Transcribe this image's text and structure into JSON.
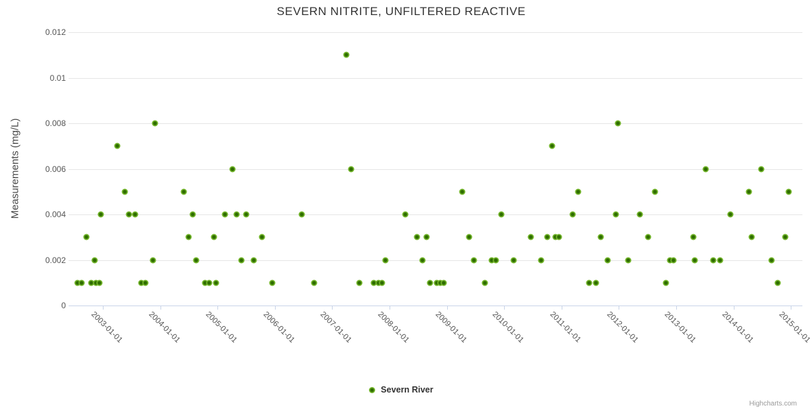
{
  "header": {
    "title": "SEVERN NITRITE, UNFILTERED REACTIVE"
  },
  "legend": {
    "label": "Severn River",
    "position": "bottom-center"
  },
  "credit": {
    "label": "Highcharts.com"
  },
  "colors": {
    "marker_outer": "#74b62b",
    "marker_core": "#2e6c00",
    "grid": "#e6e6e6",
    "axis_line": "#c9d4e8",
    "title_text": "#333333",
    "label_text": "#555555",
    "credit_text": "#999999",
    "background": "#ffffff"
  },
  "chart_data": {
    "type": "scatter",
    "title": "SEVERN NITRITE, UNFILTERED REACTIVE",
    "xlabel": "",
    "ylabel": "Measurements (mg/L)",
    "grid": "horizontal-only",
    "legend_position": "bottom-center",
    "ylim": [
      0,
      0.012
    ],
    "y_ticks": [
      0,
      0.002,
      0.004,
      0.006,
      0.008,
      0.01,
      0.012
    ],
    "y_tick_labels": [
      "0",
      "0.002",
      "0.004",
      "0.006",
      "0.008",
      "0.01",
      "0.012"
    ],
    "x_tick_years": [
      2003,
      2004,
      2005,
      2006,
      2007,
      2008,
      2009,
      2010,
      2011,
      2012,
      2013,
      2014,
      2015
    ],
    "x_tick_labels": [
      "2003-01-01",
      "2004-01-01",
      "2005-01-01",
      "2006-01-01",
      "2007-01-01",
      "2008-01-01",
      "2009-01-01",
      "2010-01-01",
      "2011-01-01",
      "2012-01-01",
      "2013-01-01",
      "2014-01-01",
      "2015-01-01"
    ],
    "x_range_years": [
      2002.4,
      2015.2
    ],
    "series": [
      {
        "name": "Severn River",
        "points": [
          [
            2002.56,
            0.001
          ],
          [
            2002.63,
            0.001
          ],
          [
            2002.71,
            0.003
          ],
          [
            2002.8,
            0.001
          ],
          [
            2002.86,
            0.002
          ],
          [
            2002.88,
            0.001
          ],
          [
            2002.94,
            0.001
          ],
          [
            2002.97,
            0.004
          ],
          [
            2003.25,
            0.007
          ],
          [
            2003.38,
            0.005
          ],
          [
            2003.45,
            0.004
          ],
          [
            2003.56,
            0.004
          ],
          [
            2003.67,
            0.001
          ],
          [
            2003.74,
            0.001
          ],
          [
            2003.87,
            0.002
          ],
          [
            2003.91,
            0.008
          ],
          [
            2004.41,
            0.005
          ],
          [
            2004.5,
            0.003
          ],
          [
            2004.57,
            0.004
          ],
          [
            2004.63,
            0.002
          ],
          [
            2004.78,
            0.001
          ],
          [
            2004.86,
            0.001
          ],
          [
            2004.94,
            0.003
          ],
          [
            2004.97,
            0.001
          ],
          [
            2005.13,
            0.004
          ],
          [
            2005.26,
            0.006
          ],
          [
            2005.33,
            0.004
          ],
          [
            2005.42,
            0.002
          ],
          [
            2005.5,
            0.004
          ],
          [
            2005.63,
            0.002
          ],
          [
            2005.78,
            0.003
          ],
          [
            2005.96,
            0.001
          ],
          [
            2006.47,
            0.004
          ],
          [
            2006.69,
            0.001
          ],
          [
            2007.25,
            0.011
          ],
          [
            2007.33,
            0.006
          ],
          [
            2007.47,
            0.001
          ],
          [
            2007.72,
            0.001
          ],
          [
            2007.81,
            0.001
          ],
          [
            2007.87,
            0.001
          ],
          [
            2007.93,
            0.002
          ],
          [
            2008.28,
            0.004
          ],
          [
            2008.48,
            0.003
          ],
          [
            2008.58,
            0.002
          ],
          [
            2008.64,
            0.003
          ],
          [
            2008.7,
            0.001
          ],
          [
            2008.83,
            0.001
          ],
          [
            2008.89,
            0.001
          ],
          [
            2008.95,
            0.001
          ],
          [
            2009.27,
            0.005
          ],
          [
            2009.39,
            0.003
          ],
          [
            2009.47,
            0.002
          ],
          [
            2009.66,
            0.001
          ],
          [
            2009.78,
            0.002
          ],
          [
            2009.86,
            0.002
          ],
          [
            2009.95,
            0.004
          ],
          [
            2010.17,
            0.002
          ],
          [
            2010.46,
            0.003
          ],
          [
            2010.64,
            0.002
          ],
          [
            2010.75,
            0.003
          ],
          [
            2010.84,
            0.007
          ],
          [
            2010.89,
            0.003
          ],
          [
            2010.96,
            0.003
          ],
          [
            2011.19,
            0.004
          ],
          [
            2011.29,
            0.005
          ],
          [
            2011.48,
            0.001
          ],
          [
            2011.6,
            0.001
          ],
          [
            2011.68,
            0.003
          ],
          [
            2011.8,
            0.002
          ],
          [
            2011.95,
            0.004
          ],
          [
            2011.98,
            0.008
          ],
          [
            2012.16,
            0.002
          ],
          [
            2012.37,
            0.004
          ],
          [
            2012.51,
            0.003
          ],
          [
            2012.63,
            0.005
          ],
          [
            2012.82,
            0.001
          ],
          [
            2012.89,
            0.002
          ],
          [
            2012.95,
            0.002
          ],
          [
            2013.3,
            0.003
          ],
          [
            2013.32,
            0.002
          ],
          [
            2013.51,
            0.006
          ],
          [
            2013.65,
            0.002
          ],
          [
            2013.77,
            0.002
          ],
          [
            2013.95,
            0.004
          ],
          [
            2014.27,
            0.005
          ],
          [
            2014.31,
            0.003
          ],
          [
            2014.48,
            0.006
          ],
          [
            2014.66,
            0.002
          ],
          [
            2014.77,
            0.001
          ],
          [
            2014.9,
            0.003
          ],
          [
            2014.96,
            0.005
          ]
        ]
      }
    ]
  }
}
